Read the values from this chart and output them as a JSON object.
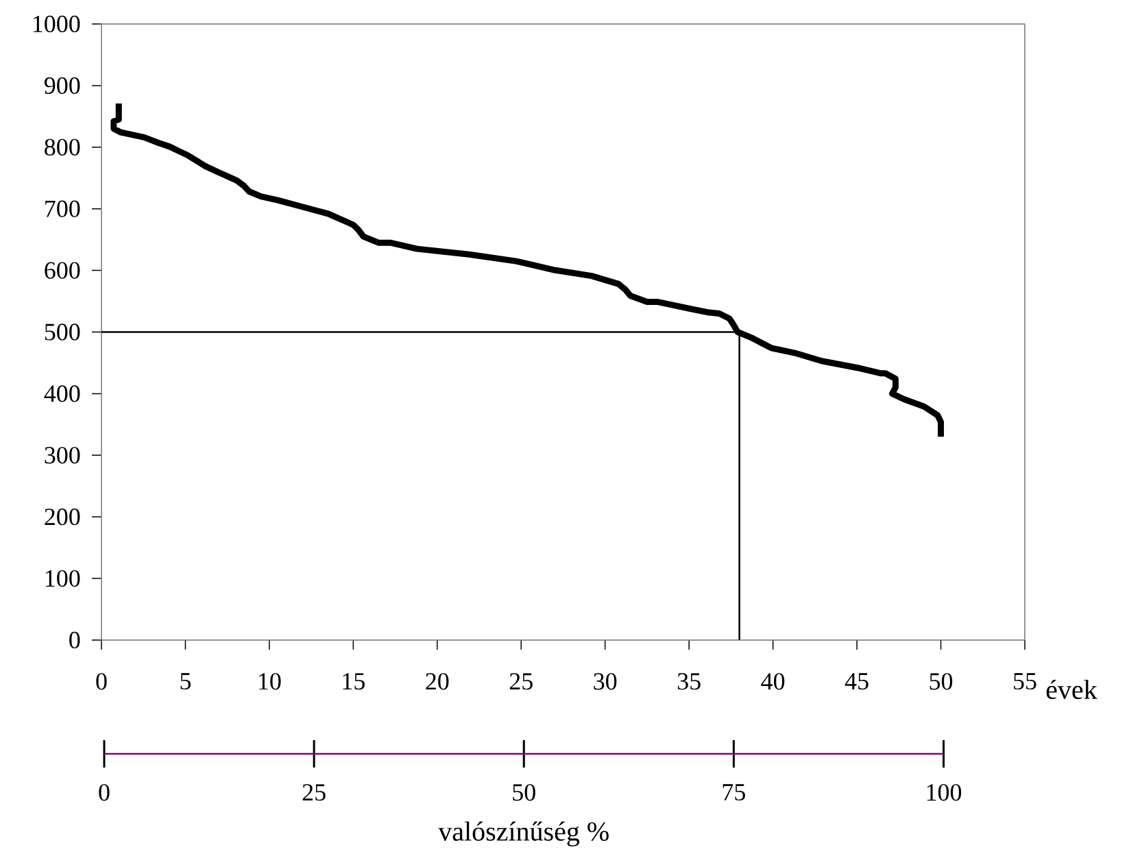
{
  "chart_data": {
    "type": "line",
    "xlabel": "évek",
    "x2label": "valószínűség %",
    "xlim": [
      0,
      55
    ],
    "xticks": [
      0,
      5,
      10,
      15,
      20,
      25,
      30,
      35,
      40,
      45,
      50,
      55
    ],
    "ylim": [
      0,
      1000
    ],
    "yticks": [
      0,
      100,
      200,
      300,
      400,
      500,
      600,
      700,
      800,
      900,
      1000
    ],
    "x2lim": [
      0,
      100
    ],
    "x2ticks": [
      0,
      25,
      50,
      75,
      100
    ],
    "grid": false,
    "marker": "none",
    "line_style": "solid",
    "series": [
      {
        "color": "#000000",
        "x": [
          1.03,
          1.03,
          0.73,
          0.73,
          1.16,
          2.54,
          3.4,
          4.05,
          5.13,
          6.2,
          7.07,
          8.06,
          8.5,
          8.8,
          9.5,
          10.5,
          12.0,
          13.5,
          15.0,
          15.3,
          15.6,
          16.5,
          17.2,
          18.8,
          21.9,
          24.7,
          26.9,
          29.2,
          30.8,
          31.2,
          31.5,
          32.5,
          33.1,
          36.1,
          36.8,
          37.4,
          37.6,
          37.9,
          38.7,
          39.9,
          41.3,
          42.9,
          45.2,
          46.4,
          46.7,
          47.3,
          47.3,
          47.1,
          47.8,
          49.0,
          49.8,
          50.0,
          50.0
        ],
        "values": [
          871,
          845,
          842,
          830,
          824,
          816,
          807,
          801,
          787,
          769,
          758,
          746,
          737,
          728,
          720,
          714,
          703,
          692,
          674,
          666,
          655,
          645,
          645,
          635,
          626,
          615,
          601,
          591,
          578,
          569,
          559,
          549,
          549,
          532,
          530,
          522,
          514,
          500,
          491,
          474,
          466,
          453,
          441,
          433,
          433,
          424,
          410,
          400,
          391,
          379,
          365,
          354,
          330
        ]
      },
      {
        "type": "line",
        "color": "#000000",
        "x": [
          0,
          38,
          38
        ],
        "values": [
          500,
          500,
          0
        ]
      }
    ]
  }
}
